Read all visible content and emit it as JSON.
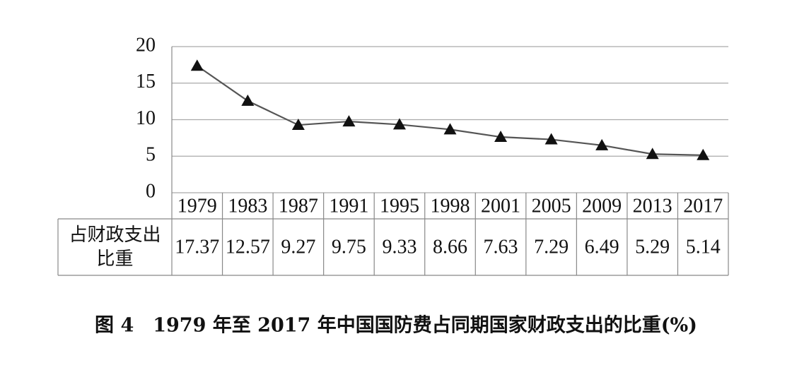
{
  "chart_data": {
    "type": "line",
    "caption": "图 4　1979 年至 2017 年中国国防费占同期国家财政支出的比重(%)",
    "categories": [
      "1979",
      "1983",
      "1987",
      "1991",
      "1995",
      "1998",
      "2001",
      "2005",
      "2009",
      "2013",
      "2017"
    ],
    "series": [
      {
        "name": "占财政支出比重",
        "color": "#555555",
        "marker_color": "#111111",
        "values": [
          17.37,
          12.57,
          9.27,
          9.75,
          9.33,
          8.66,
          7.63,
          7.29,
          6.49,
          5.29,
          5.14
        ]
      }
    ],
    "ylim": [
      0,
      20
    ],
    "yticks": [
      0,
      5,
      10,
      15,
      20
    ],
    "grid": true
  }
}
